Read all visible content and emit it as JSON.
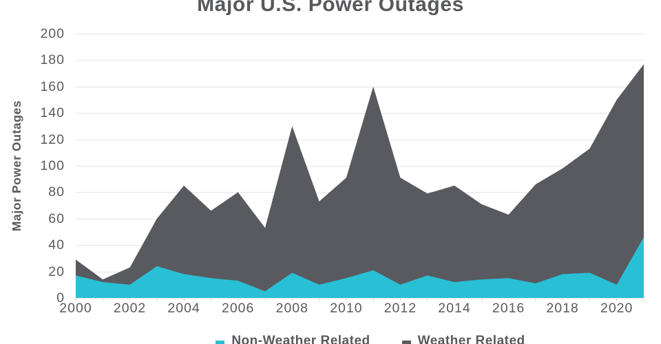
{
  "title": "Major U.S. Power Outages",
  "colors": {
    "non_weather": "#29BFD5",
    "weather": "#595A5F",
    "text": "#58595B",
    "gridline": "#E3E3E3",
    "tick": "#D9D9D9",
    "background": "#FFFFFF"
  },
  "chart_data": {
    "type": "area",
    "stacked": true,
    "title": "Major U.S. Power Outages",
    "xlabel": "",
    "ylabel": "Major Power Outages",
    "x": [
      2000,
      2001,
      2002,
      2003,
      2004,
      2005,
      2006,
      2007,
      2008,
      2009,
      2010,
      2011,
      2012,
      2013,
      2014,
      2015,
      2016,
      2017,
      2018,
      2019,
      2020,
      2021
    ],
    "x_tick_labels": [
      "2000",
      "2002",
      "2004",
      "2006",
      "2008",
      "2010",
      "2012",
      "2014",
      "2016",
      "2018",
      "2020"
    ],
    "y_ticks": [
      0,
      20,
      40,
      60,
      80,
      100,
      120,
      140,
      160,
      180,
      200
    ],
    "ylim": [
      0,
      200
    ],
    "grid": "horizontal",
    "legend_position": "bottom",
    "series": [
      {
        "name": "Non-Weather Related",
        "color": "#29BFD5",
        "values": [
          17,
          12,
          10,
          24,
          18,
          15,
          13,
          5,
          19,
          10,
          15,
          21,
          10,
          17,
          12,
          14,
          15,
          11,
          18,
          19,
          10,
          46
        ]
      },
      {
        "name": "Weather Related",
        "color": "#595A5F",
        "values": [
          12,
          2,
          13,
          36,
          67,
          51,
          67,
          48,
          111,
          63,
          76,
          139,
          81,
          62,
          73,
          57,
          48,
          75,
          80,
          94,
          140,
          131
        ]
      }
    ],
    "stacked_totals": [
      29,
      14,
      23,
      60,
      85,
      66,
      80,
      53,
      130,
      73,
      91,
      160,
      91,
      79,
      85,
      71,
      63,
      86,
      98,
      113,
      150,
      177
    ]
  },
  "legend": {
    "items": [
      {
        "label": "Non-Weather Related",
        "color": "#29BFD5"
      },
      {
        "label": "Weather Related",
        "color": "#595A5F"
      }
    ]
  }
}
